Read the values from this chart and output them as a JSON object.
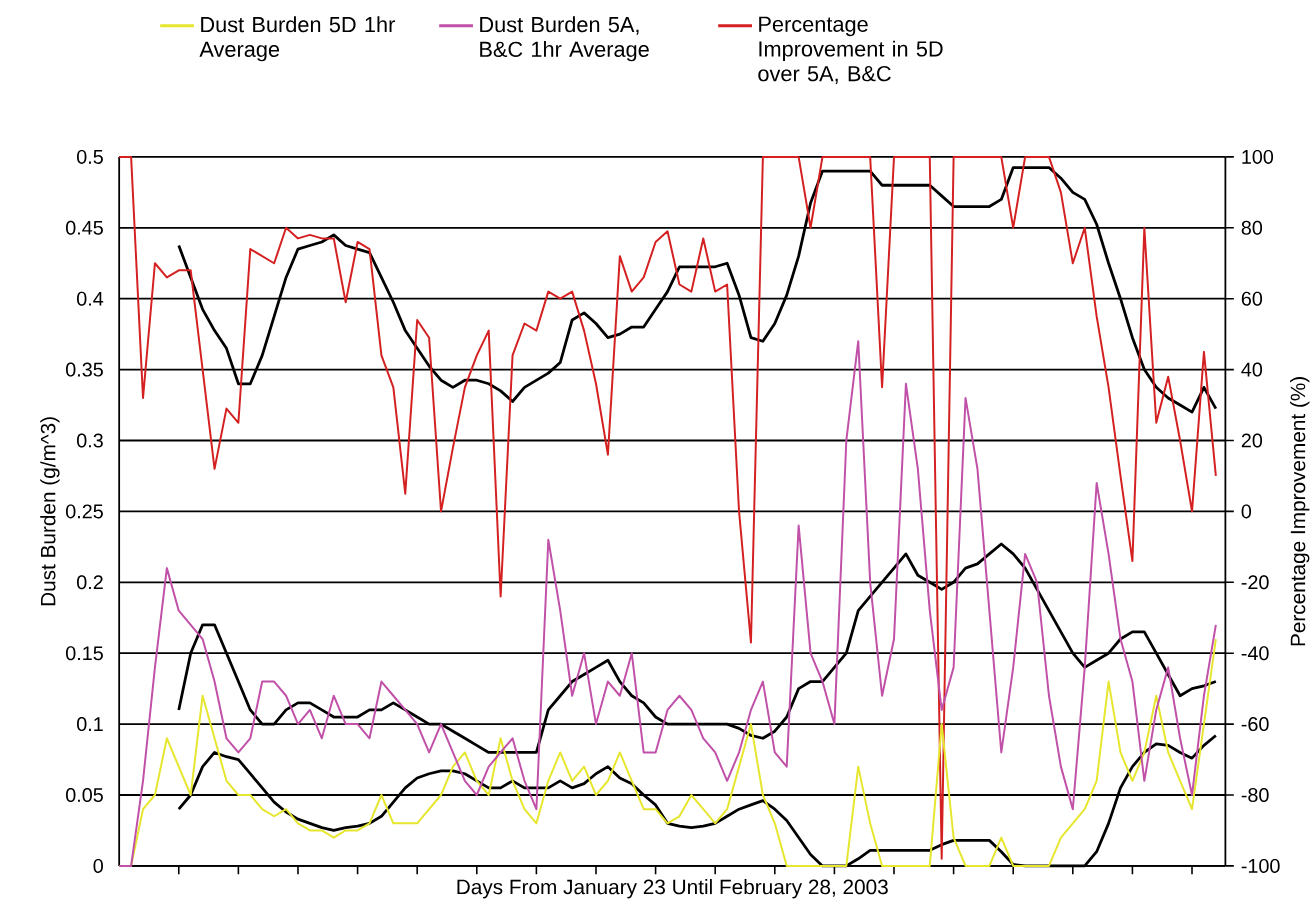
{
  "chart_data": {
    "type": "line",
    "xlabel": "Days From January 23 Until February 28, 2003",
    "ylabel": "Dust Burden (g/m^3)",
    "y2label": "Percentage Improvement (%)",
    "categories": [
      null,
      null,
      null,
      null,
      null,
      null,
      null,
      null,
      null,
      null,
      null,
      null,
      null,
      null,
      null,
      null,
      null,
      null,
      null,
      null,
      null,
      null,
      null,
      null,
      null,
      null,
      null,
      null,
      null,
      null,
      null,
      null,
      null,
      null,
      null,
      null,
      null,
      null,
      null,
      null,
      null,
      null,
      null,
      null,
      null,
      null,
      null,
      null,
      null,
      null,
      null,
      null,
      null,
      null,
      null,
      null,
      null,
      null,
      null,
      null,
      null,
      null,
      null,
      null,
      null,
      null,
      null,
      null,
      null,
      null,
      null,
      null,
      null,
      null,
      null,
      null,
      null,
      null,
      null,
      null,
      null,
      null,
      null,
      null,
      null,
      null,
      null,
      null,
      null,
      null,
      null,
      null,
      null
    ],
    "series": [
      {
        "name": "Dust Burden 5D 1hr Average",
        "color": "#e6e62e",
        "values": [
          0,
          0,
          0.04,
          0.05,
          0.09,
          0.07,
          0.05,
          0.12,
          0.09,
          0.06,
          0.05,
          0.05,
          0.04,
          0.035,
          0.04,
          0.03,
          0.025,
          0.025,
          0.02,
          0.025,
          0.025,
          0.03,
          0.05,
          0.03,
          0.03,
          0.03,
          0.04,
          0.05,
          0.07,
          0.08,
          0.06,
          0.05,
          0.09,
          0.06,
          0.04,
          0.03,
          0.06,
          0.08,
          0.06,
          0.07,
          0.05,
          0.06,
          0.08,
          0.06,
          0.04,
          0.04,
          0.03,
          0.035,
          0.05,
          0.04,
          0.03,
          0.04,
          0.07,
          0.1,
          0.05,
          0.03,
          0,
          0,
          0,
          0,
          0,
          0,
          0.07,
          0.03,
          0,
          0,
          0,
          0,
          0,
          0.1,
          0.02,
          0,
          0,
          0,
          0.02,
          0,
          0,
          0,
          0,
          0.02,
          0.03,
          0.04,
          0.06,
          0.13,
          0.08,
          0.06,
          0.08,
          0.12,
          0.08,
          0.06,
          0.04,
          0.1,
          0.16
        ]
      },
      {
        "name": "Dust Burden 5A, B&C 1hr Average",
        "color": "#c050a8",
        "values": [
          0,
          0,
          0.06,
          0.14,
          0.21,
          0.18,
          0.17,
          0.16,
          0.13,
          0.09,
          0.08,
          0.09,
          0.13,
          0.13,
          0.12,
          0.1,
          0.11,
          0.09,
          0.12,
          0.1,
          0.1,
          0.09,
          0.13,
          0.12,
          0.11,
          0.1,
          0.08,
          0.1,
          0.08,
          0.06,
          0.05,
          0.07,
          0.08,
          0.09,
          0.06,
          0.04,
          0.23,
          0.18,
          0.12,
          0.15,
          0.1,
          0.13,
          0.12,
          0.15,
          0.08,
          0.08,
          0.11,
          0.12,
          0.11,
          0.09,
          0.08,
          0.06,
          0.08,
          0.11,
          0.13,
          0.08,
          0.07,
          0.24,
          0.15,
          0.13,
          0.1,
          0.3,
          0.37,
          0.2,
          0.12,
          0.16,
          0.34,
          0.28,
          0.18,
          0.11,
          0.14,
          0.33,
          0.28,
          0.18,
          0.08,
          0.14,
          0.22,
          0.2,
          0.12,
          0.07,
          0.04,
          0.14,
          0.27,
          0.22,
          0.16,
          0.13,
          0.06,
          0.11,
          0.14,
          0.09,
          0.05,
          0.12,
          0.17
        ]
      },
      {
        "name": "Percentage Improvement in 5D over 5A, B&C",
        "color": "#d42020",
        "axis": "y2",
        "values": [
          100,
          100,
          32,
          70,
          66,
          68,
          68,
          40,
          12,
          29,
          25,
          74,
          72,
          70,
          80,
          77,
          78,
          77,
          77,
          59,
          76,
          74,
          44,
          35,
          5,
          54,
          49,
          0,
          18,
          35,
          44,
          51,
          -24,
          44,
          53,
          51,
          62,
          60,
          62,
          51,
          36,
          16,
          72,
          62,
          66,
          76,
          79,
          64,
          62,
          77,
          62,
          64,
          0,
          -37,
          100,
          100,
          100,
          100,
          80,
          100,
          100,
          100,
          100,
          100,
          35,
          100,
          100,
          100,
          100,
          -98,
          100,
          100,
          100,
          100,
          100,
          80,
          100,
          100,
          100,
          90,
          70,
          80,
          55,
          35,
          10,
          -14,
          80,
          25,
          38,
          20,
          0,
          45,
          10
        ]
      },
      {
        "color": "#000000",
        "values": [
          null,
          null,
          null,
          null,
          null,
          0.04,
          0.05,
          0.07,
          0.08,
          0.077,
          0.075,
          0.065,
          0.055,
          0.045,
          0.038,
          0.033,
          0.03,
          0.027,
          0.025,
          0.027,
          0.028,
          0.03,
          0.035,
          0.045,
          0.055,
          0.062,
          0.065,
          0.067,
          0.067,
          0.065,
          0.06,
          0.055,
          0.055,
          0.06,
          0.055,
          0.055,
          0.055,
          0.06,
          0.055,
          0.058,
          0.065,
          0.07,
          0.062,
          0.058,
          0.05,
          0.043,
          0.03,
          0.028,
          0.027,
          0.028,
          0.03,
          0.035,
          0.04,
          0.043,
          0.046,
          0.04,
          0.032,
          0.02,
          0.008,
          0,
          0,
          0,
          0.005,
          0.011,
          0.011,
          0.011,
          0.011,
          0.011,
          0.011,
          0.015,
          0.018,
          0.018,
          0.018,
          0.018,
          0.01,
          0.001,
          0,
          0,
          0,
          0,
          0,
          0,
          0.01,
          0.03,
          0.055,
          0.07,
          0.08,
          0.086,
          0.085,
          0.08,
          0.076,
          0.085,
          0.092
        ]
      },
      {
        "color": "#000000",
        "values": [
          null,
          null,
          null,
          null,
          null,
          0.11,
          0.15,
          0.17,
          0.17,
          0.15,
          0.13,
          0.11,
          0.1,
          0.1,
          0.11,
          0.115,
          0.115,
          0.11,
          0.105,
          0.105,
          0.105,
          0.11,
          0.11,
          0.115,
          0.11,
          0.105,
          0.1,
          0.1,
          0.095,
          0.09,
          0.085,
          0.08,
          0.08,
          0.08,
          0.08,
          0.08,
          0.11,
          0.12,
          0.13,
          0.135,
          0.14,
          0.145,
          0.13,
          0.12,
          0.115,
          0.105,
          0.1,
          0.1,
          0.1,
          0.1,
          0.1,
          0.1,
          0.097,
          0.092,
          0.09,
          0.095,
          0.105,
          0.125,
          0.13,
          0.13,
          0.14,
          0.15,
          0.18,
          0.19,
          0.2,
          0.21,
          0.22,
          0.205,
          0.2,
          0.195,
          0.2,
          0.21,
          0.213,
          0.22,
          0.227,
          0.22,
          0.21,
          0.195,
          0.18,
          0.165,
          0.15,
          0.14,
          0.145,
          0.15,
          0.16,
          0.165,
          0.165,
          0.15,
          0.135,
          0.12,
          0.125,
          0.127,
          0.13
        ]
      },
      {
        "color": "#000000",
        "axis": "y2",
        "values": [
          null,
          null,
          null,
          null,
          null,
          75,
          66,
          57,
          51,
          46,
          36,
          36,
          44,
          55,
          66,
          74,
          75,
          76,
          78,
          75,
          74,
          73,
          66,
          59,
          51,
          46,
          41,
          37,
          35,
          37,
          37,
          36,
          34,
          31,
          35,
          37,
          39,
          42,
          54,
          56,
          53,
          49,
          50,
          52,
          52,
          57,
          62,
          69,
          69,
          69,
          69,
          70,
          61,
          49,
          48,
          53,
          61,
          72,
          87,
          96,
          96,
          96,
          96,
          96,
          92,
          92,
          92,
          92,
          92,
          89,
          86,
          86,
          86,
          86,
          88,
          97,
          97,
          97,
          97,
          94,
          90,
          88,
          81,
          70,
          60,
          49,
          40,
          35,
          32,
          30,
          28,
          35,
          29
        ]
      }
    ],
    "ylim": [
      0,
      0.5
    ],
    "yticks": [
      0,
      0.05,
      0.1,
      0.15,
      0.2,
      0.25,
      0.3,
      0.35,
      0.4,
      0.45,
      0.5
    ],
    "y2lim": [
      -100,
      100
    ],
    "y2ticks": [
      -100,
      -80,
      -60,
      -40,
      -20,
      0,
      20,
      40,
      60,
      80,
      100
    ],
    "grid": "y",
    "legend": "top"
  }
}
